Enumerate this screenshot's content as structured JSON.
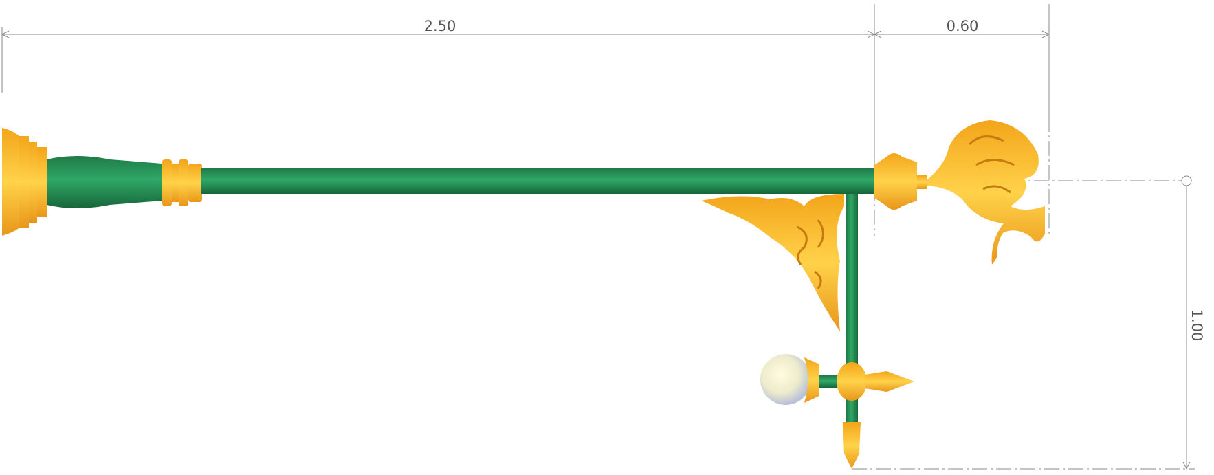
{
  "dimensions": {
    "arm_length": "2.50",
    "finial_length": "0.60",
    "drop_height": "1.00"
  }
}
